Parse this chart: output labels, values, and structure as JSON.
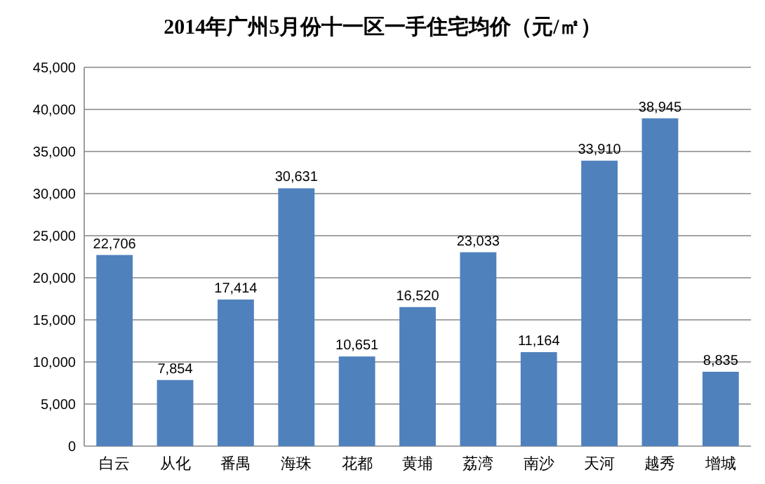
{
  "chart_data": {
    "type": "bar",
    "title": "2014年广州5月份十一区一手住宅均价（元/㎡）",
    "categories": [
      "白云",
      "从化",
      "番禺",
      "海珠",
      "花都",
      "黄埔",
      "荔湾",
      "南沙",
      "天河",
      "越秀",
      "增城"
    ],
    "values": [
      22706,
      7854,
      17414,
      30631,
      10651,
      16520,
      23033,
      11164,
      33910,
      38945,
      8835
    ],
    "value_labels": [
      "22,706",
      "7,854",
      "17,414",
      "30,631",
      "10,651",
      "16,520",
      "23,033",
      "11,164",
      "33,910",
      "38,945",
      "8,835"
    ],
    "color": "#4f81bd",
    "ylim": [
      0,
      45000
    ],
    "yticks": [
      {
        "value": 0,
        "label": "0"
      },
      {
        "value": 5000,
        "label": "5,000"
      },
      {
        "value": 10000,
        "label": "10,000"
      },
      {
        "value": 15000,
        "label": "15,000"
      },
      {
        "value": 20000,
        "label": "20,000"
      },
      {
        "value": 25000,
        "label": "25,000"
      },
      {
        "value": 30000,
        "label": "30,000"
      },
      {
        "value": 35000,
        "label": "35,000"
      },
      {
        "value": 40000,
        "label": "40,000"
      },
      {
        "value": 45000,
        "label": "45,000"
      }
    ],
    "grid": true
  }
}
